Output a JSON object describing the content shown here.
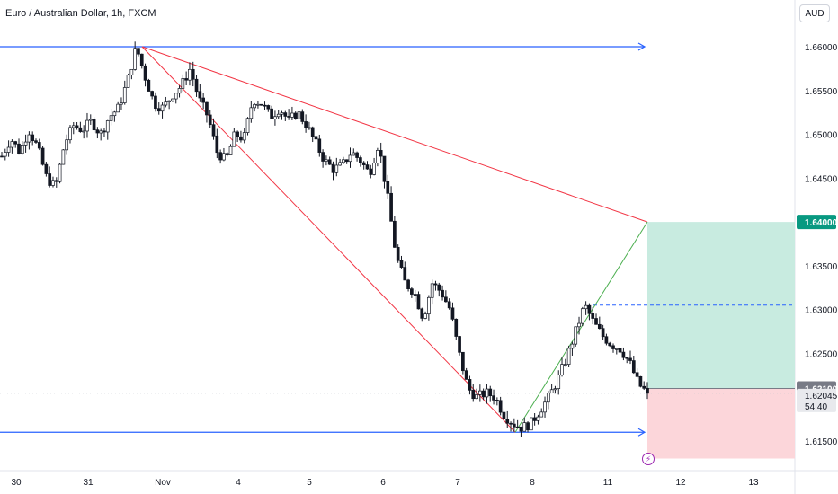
{
  "header": {
    "title": "Euro / Australian Dollar, 1h, FXCM",
    "currency_button": "AUD"
  },
  "price_axis": {
    "ticks": [
      "1.66000",
      "1.65500",
      "1.65000",
      "1.64500",
      "1.64000",
      "1.63500",
      "1.63000",
      "1.62500",
      "1.62100",
      "1.62045",
      "1.61500"
    ],
    "tick_values": [
      1.66,
      1.655,
      1.65,
      1.645,
      1.64,
      1.635,
      1.63,
      1.625,
      1.621,
      1.62045,
      1.615
    ],
    "target_label": "1.64000",
    "entry_label": "1.62100",
    "last_label": "1.62045",
    "countdown": "54:40"
  },
  "time_axis": {
    "labels": [
      "30",
      "31",
      "Nov",
      "4",
      "5",
      "6",
      "7",
      "8",
      "11",
      "12",
      "13"
    ]
  },
  "colors": {
    "bull": "#ffffff",
    "bear": "#131722",
    "horizontal_line": "#2962ff",
    "trendline": "#f23645",
    "target_zone": "#c8ebe0",
    "stop_zone": "#fcd6da",
    "target_badge": "#089981",
    "entry_badge": "#787b86",
    "projection": "#4caf50"
  },
  "icons": {
    "alert": "lightning-icon"
  },
  "chart_data": {
    "type": "candlestick",
    "title": "Euro / Australian Dollar, 1h, FXCM",
    "ylim": [
      1.6115,
      1.6645
    ],
    "y_ticks": [
      1.615,
      1.62,
      1.625,
      1.63,
      1.635,
      1.64,
      1.645,
      1.65,
      1.655,
      1.66
    ],
    "x_labels": [
      "30",
      "31",
      "Nov",
      "4",
      "5",
      "6",
      "7",
      "8",
      "11",
      "12",
      "13"
    ],
    "price_path": [
      1.6475,
      1.6495,
      1.648,
      1.6505,
      1.6485,
      1.645,
      1.644,
      1.649,
      1.651,
      1.6505,
      1.6515,
      1.65,
      1.652,
      1.653,
      1.656,
      1.66,
      1.6565,
      1.6535,
      1.653,
      1.6545,
      1.6555,
      1.6575,
      1.654,
      1.652,
      1.648,
      1.647,
      1.65,
      1.6495,
      1.654,
      1.6535,
      1.652,
      1.653,
      1.6515,
      1.6525,
      1.651,
      1.649,
      1.647,
      1.646,
      1.6465,
      1.648,
      1.647,
      1.6455,
      1.649,
      1.643,
      1.636,
      1.633,
      1.632,
      1.629,
      1.633,
      1.632,
      1.63,
      1.625,
      1.621,
      1.62,
      1.6205,
      1.62,
      1.618,
      1.617,
      1.6165,
      1.617,
      1.6185,
      1.62,
      1.622,
      1.6245,
      1.6275,
      1.6305,
      1.6285,
      1.627,
      1.626,
      1.6255,
      1.624,
      1.6215,
      1.62045
    ],
    "last_price": 1.62045,
    "horizontal_levels": [
      1.66,
      1.616
    ],
    "trendlines": [
      {
        "from": [
          "Oct 31",
          1.66
        ],
        "to": [
          "Nov 11",
          1.64
        ],
        "label": ""
      },
      {
        "from": [
          "Oct 31",
          1.66
        ],
        "to": [
          "Nov 7",
          1.616
        ],
        "label": ""
      }
    ],
    "position": {
      "type": "long",
      "entry": 1.621,
      "target": 1.64,
      "stop": 1.613
    },
    "dashed_level": 1.6305,
    "projection_line": {
      "from": 1.616,
      "to": 1.64
    }
  }
}
